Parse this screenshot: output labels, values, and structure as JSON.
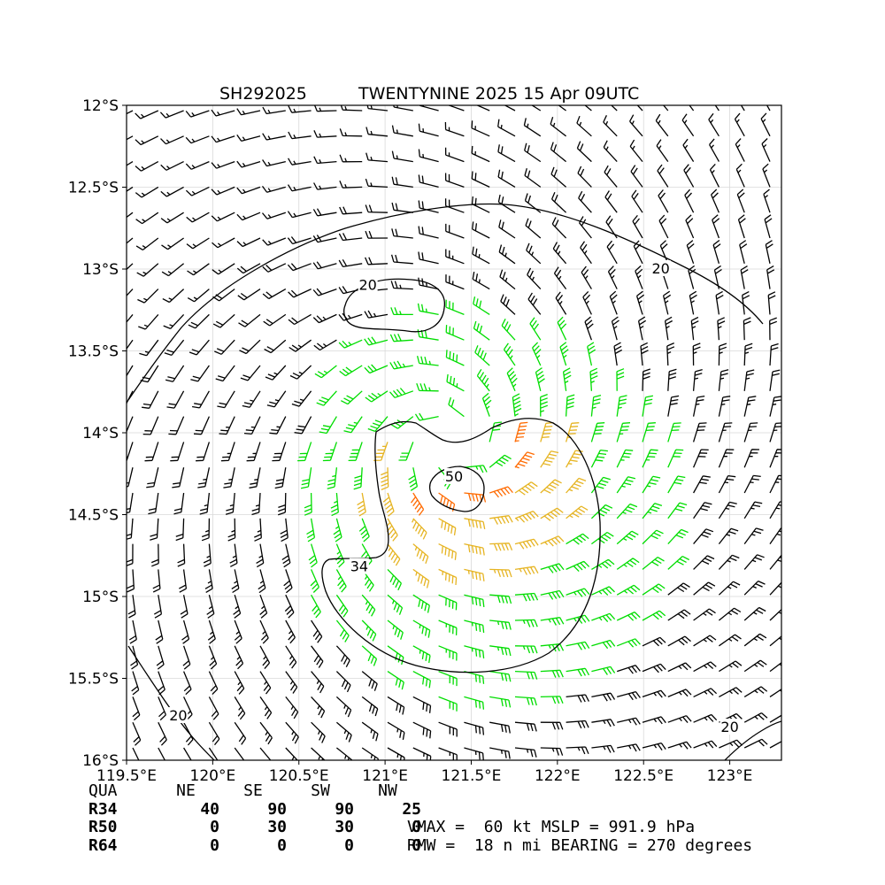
{
  "title": {
    "storm_id": "SH292025",
    "storm_name_time": "TWENTYNINE 2025 15 Apr 09UTC"
  },
  "chart_data": {
    "type": "wind_barb_contour",
    "x_range_deg_e": [
      119.5,
      123.3
    ],
    "y_range_deg_s": [
      12.0,
      16.0
    ],
    "x_ticks": [
      "119.5°E",
      "120°E",
      "120.5°E",
      "121°E",
      "121.5°E",
      "122°E",
      "122.5°E",
      "123°E"
    ],
    "x_tick_values": [
      119.5,
      120.0,
      120.5,
      121.0,
      121.5,
      122.0,
      122.5,
      123.0
    ],
    "y_ticks": [
      "12°S",
      "12.5°S",
      "13°S",
      "13.5°S",
      "14°S",
      "14.5°S",
      "15°S",
      "15.5°S",
      "16°S"
    ],
    "y_tick_values": [
      12.0,
      12.5,
      13.0,
      13.5,
      14.0,
      14.5,
      15.0,
      15.5,
      16.0
    ],
    "grid": true,
    "storm_center": {
      "lon": 121.4,
      "lat": 14.07
    },
    "contour_labels": [
      {
        "text": "20",
        "lon": 122.6,
        "lat": 13.0
      },
      {
        "text": "20",
        "lon": 120.9,
        "lat": 13.1
      },
      {
        "text": "20",
        "lon": 119.8,
        "lat": 15.73
      },
      {
        "text": "20",
        "lon": 123.0,
        "lat": 15.8
      },
      {
        "text": "34",
        "lon": 120.85,
        "lat": 14.82
      },
      {
        "text": "50",
        "lon": 121.4,
        "lat": 14.27
      }
    ],
    "barb_colors": {
      "below_34kt": "#000000",
      "34_to_50kt": "#00dd00",
      "50_to_64kt": "#e6b422",
      "above_64kt": "#ff6a00"
    }
  },
  "wind_radii": {
    "headers": [
      "QUA",
      "NE",
      "SE",
      "SW",
      "NW"
    ],
    "rows": [
      {
        "label": "R34",
        "values": [
          "40",
          "90",
          "90",
          "25"
        ]
      },
      {
        "label": "R50",
        "values": [
          "0",
          "30",
          "30",
          "0"
        ]
      },
      {
        "label": "R64",
        "values": [
          "0",
          "0",
          "0",
          "0"
        ]
      }
    ]
  },
  "stats": {
    "line1": "VMAX =  60 kt MSLP = 991.9 hPa",
    "line2": "RMW =  18 n mi BEARING = 270 degrees"
  }
}
